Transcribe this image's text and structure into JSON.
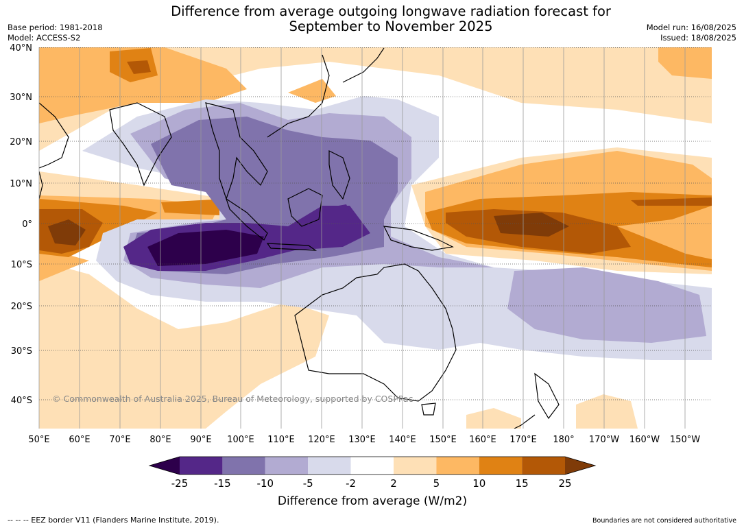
{
  "title": {
    "line1": "Difference from average outgoing longwave radiation forecast for",
    "line2": "September to November 2025"
  },
  "meta": {
    "base_period": "Base period: 1981-2018",
    "model": "Model: ACCESS-S2",
    "model_run": "Model run: 16/08/2025",
    "issued": "Issued: 18/08/2025"
  },
  "map": {
    "lat_labels": [
      "40°N",
      "30°N",
      "20°N",
      "10°N",
      "0°",
      "10°S",
      "20°S",
      "30°S",
      "40°S"
    ],
    "lon_labels": [
      "50°E",
      "60°E",
      "70°E",
      "80°E",
      "90°E",
      "100°E",
      "110°E",
      "120°E",
      "130°E",
      "140°E",
      "150°E",
      "160°E",
      "170°E",
      "180°",
      "170°W",
      "160°W",
      "150°W"
    ],
    "copyright": "© Commonwealth of Australia 2025, Bureau of Meteorology, supported by COSPPac"
  },
  "colorbar": {
    "ticks": [
      "-25",
      "-15",
      "-10",
      "-5",
      "-2",
      "2",
      "5",
      "10",
      "15",
      "25"
    ],
    "colors": [
      "#2d004b",
      "#542788",
      "#8073ac",
      "#b2abd2",
      "#d8daeb",
      "#ffffff",
      "#fee0b6",
      "#fdb863",
      "#e08214",
      "#b35806",
      "#7f3b08"
    ],
    "label": "Difference from average (W/m2)"
  },
  "footer": {
    "eez": "--  --  -- EEZ border V11 (Flanders Marine Institute, 2019).",
    "disclaimer": "Boundaries are not considered authoritative"
  }
}
